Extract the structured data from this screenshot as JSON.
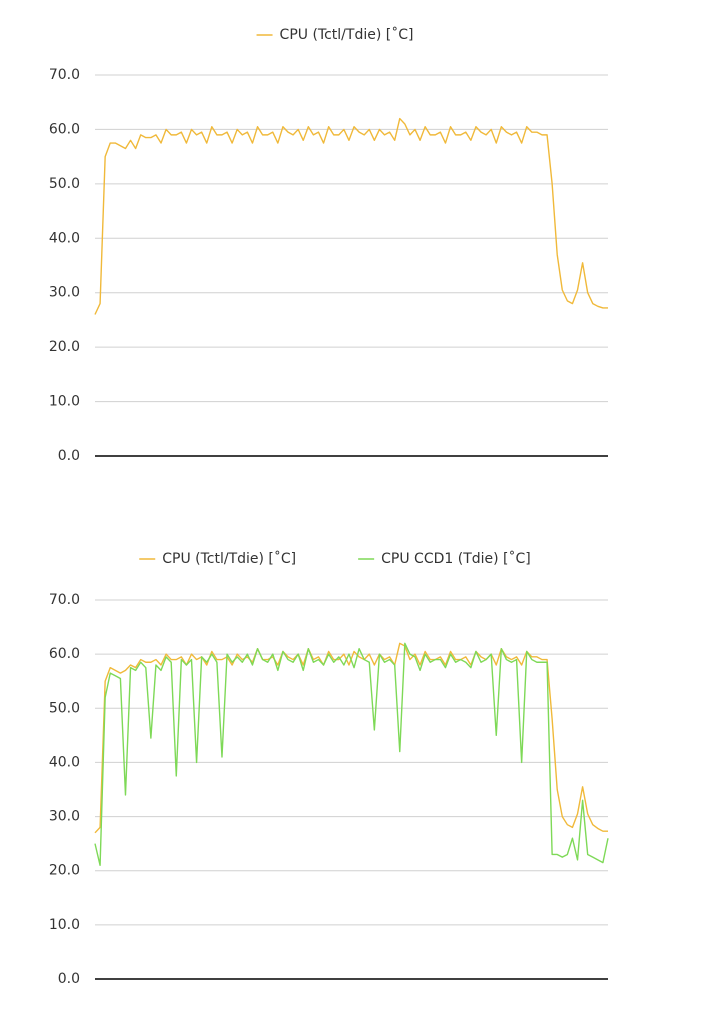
{
  "chart_data": [
    {
      "type": "line",
      "series": [
        {
          "name": "CPU (Tctl/Tdie) [˚C]",
          "color": "#f0b93a",
          "values": [
            26,
            28,
            55,
            57.5,
            57.5,
            57,
            56.5,
            58,
            56.5,
            59,
            58.5,
            58.5,
            59,
            57.5,
            60,
            59,
            59,
            59.5,
            57.5,
            60,
            59,
            59.5,
            57.5,
            60.5,
            59,
            59,
            59.5,
            57.5,
            60,
            59,
            59.5,
            57.5,
            60.5,
            59,
            59,
            59.5,
            57.5,
            60.5,
            59.5,
            59,
            60,
            58,
            60.5,
            59,
            59.5,
            57.5,
            60.5,
            59,
            59,
            60,
            58,
            60.5,
            59.5,
            59,
            60,
            58,
            60,
            59,
            59.5,
            58,
            62,
            61,
            59,
            60,
            58,
            60.5,
            59,
            59,
            59.5,
            57.5,
            60.5,
            59,
            59,
            59.5,
            58,
            60.5,
            59.5,
            59,
            60,
            57.5,
            60.5,
            59.5,
            59,
            59.5,
            57.5,
            60.5,
            59.5,
            59.5,
            59,
            59,
            50,
            37,
            30.5,
            28.5,
            28,
            30.5,
            35.5,
            30,
            28,
            27.5,
            27.2,
            27.2
          ]
        }
      ],
      "ylim": [
        0,
        70
      ],
      "yticks": [
        {
          "value": 0,
          "label": "0.0"
        },
        {
          "value": 10,
          "label": "10.0"
        },
        {
          "value": 20,
          "label": "20.0"
        },
        {
          "value": 30,
          "label": "30.0"
        },
        {
          "value": 40,
          "label": "40.0"
        },
        {
          "value": 50,
          "label": "50.0"
        },
        {
          "value": 60,
          "label": "60.0"
        },
        {
          "value": 70,
          "label": "70.0"
        }
      ],
      "grid": true,
      "legend": "top"
    },
    {
      "type": "line",
      "series": [
        {
          "name": "CPU (Tctl/Tdie) [˚C]",
          "color": "#f0b93a",
          "values": [
            27,
            28,
            55,
            57.5,
            57,
            56.5,
            57,
            58,
            57.5,
            59,
            58.5,
            58.5,
            59,
            58,
            60,
            59,
            59,
            59.5,
            58,
            60,
            59,
            59.5,
            58,
            60.5,
            59,
            59,
            59.5,
            58,
            60,
            59,
            59.5,
            58.5,
            61,
            59,
            59,
            59.5,
            58,
            60.5,
            59.5,
            59,
            60,
            58,
            61,
            59,
            59.5,
            58,
            60.5,
            59,
            59,
            60,
            58,
            60.5,
            59.5,
            59,
            60,
            58,
            60,
            59,
            59.5,
            58,
            62,
            61.5,
            59,
            60,
            58,
            60.5,
            59,
            59,
            59.5,
            58,
            60.5,
            59,
            59,
            59.5,
            58,
            60.5,
            59.5,
            59,
            60,
            58,
            61,
            59.5,
            59,
            59.5,
            58,
            60.5,
            59.5,
            59.5,
            59,
            59,
            48,
            35,
            30,
            28.5,
            28,
            30.5,
            35.5,
            30.5,
            28.5,
            27.8,
            27.3,
            27.3
          ]
        },
        {
          "name": "CPU CCD1 (Tdie) [˚C]",
          "color": "#7ed957",
          "values": [
            25,
            21,
            52,
            56.5,
            56,
            55.5,
            34,
            57.5,
            57,
            58.5,
            57.5,
            44.5,
            58,
            57,
            59.5,
            58.5,
            37.5,
            59,
            58,
            59,
            40,
            59.5,
            58.5,
            60,
            58.5,
            41,
            60,
            58.5,
            59.5,
            58.5,
            60,
            58,
            61,
            59,
            58.5,
            60,
            57,
            60.5,
            59,
            58.5,
            60,
            57,
            61,
            58.5,
            59,
            58,
            60,
            58.5,
            59.5,
            58,
            60,
            57.5,
            61,
            59,
            58.5,
            46,
            60,
            58.5,
            59,
            58,
            42,
            62,
            60,
            59.5,
            57,
            60,
            58.5,
            59,
            59,
            57.5,
            60,
            58.5,
            59,
            58.5,
            57.5,
            60.5,
            58.5,
            59,
            60,
            45,
            61,
            59,
            58.5,
            59,
            40,
            60.5,
            59,
            58.5,
            58.5,
            58.5,
            23,
            23,
            22.5,
            23,
            26,
            22,
            33,
            23,
            22.5,
            22,
            21.5,
            26
          ]
        }
      ],
      "ylim": [
        0,
        70
      ],
      "yticks": [
        {
          "value": 0,
          "label": "0.0"
        },
        {
          "value": 10,
          "label": "10.0"
        },
        {
          "value": 20,
          "label": "20.0"
        },
        {
          "value": 30,
          "label": "30.0"
        },
        {
          "value": 40,
          "label": "40.0"
        },
        {
          "value": 50,
          "label": "50.0"
        },
        {
          "value": 60,
          "label": "60.0"
        },
        {
          "value": 70,
          "label": "70.0"
        }
      ],
      "grid": true,
      "legend": "top"
    }
  ]
}
